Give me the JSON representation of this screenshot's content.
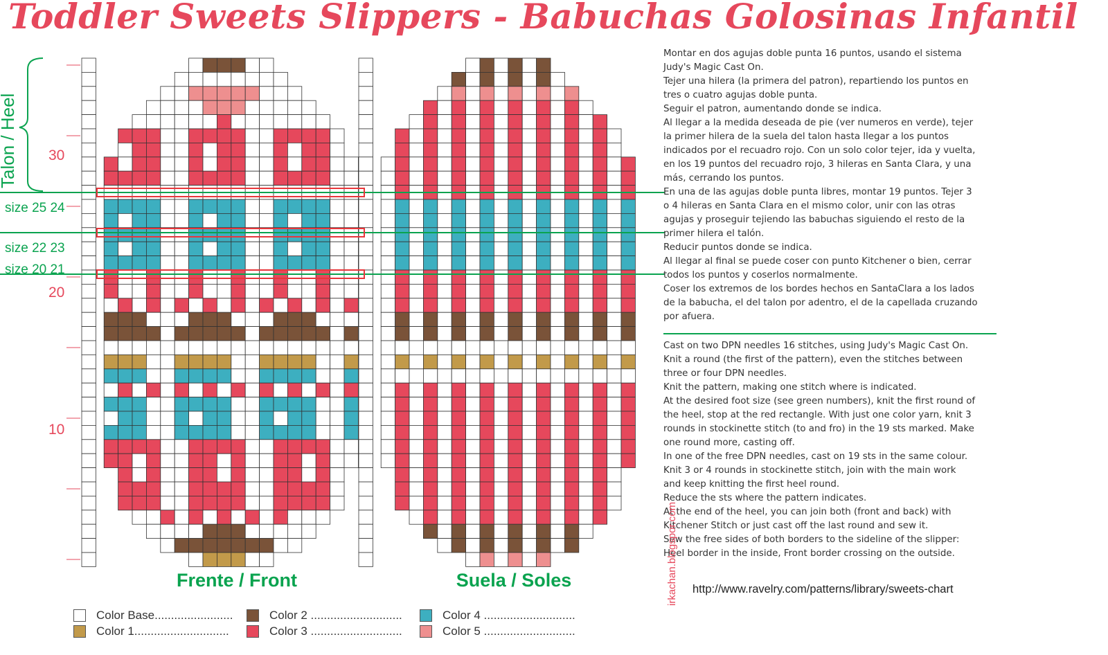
{
  "title": "Toddler Sweets Slippers - Babuchas Golosinas Infantil",
  "colors": {
    "base": "#ffffff",
    "color1": "#c29a4a",
    "color2": "#7a5339",
    "color3": "#e6485c",
    "color4": "#3dafc0",
    "color5": "#ee8f8f",
    "title": "#e6485c",
    "green": "#0aa34f",
    "red_rect": "#e8363a"
  },
  "chart_labels": {
    "front": "Frente / Front",
    "soles": "Suela / Soles",
    "heel": "Talon / Heel",
    "row_30": "30",
    "row_20": "20",
    "row_10": "10",
    "size_25_24": "size 25 24",
    "size_22_23": "size 22 23",
    "size_20_21": "size 20 21"
  },
  "text_es": [
    "Montar en dos agujas doble punta 16 puntos, usando el sistema",
    "Judy's Magic Cast On.",
    "Tejer una hilera (la primera del patron), repartiendo los puntos en",
    "tres o cuatro agujas doble punta.",
    "Seguir el patron, aumentando donde se indica.",
    "Al llegar a la medida deseada de pie (ver numeros en verde), tejer",
    "la primer hilera de la suela del talon hasta llegar a los puntos",
    "indicados por el recuadro rojo. Con un solo color tejer, ida y vuelta,",
    "en los 19 puntos del recuadro rojo, 3 hileras en Santa Clara, y una",
    "más, cerrando los puntos.",
    "En una de las agujas doble punta libres, montar 19 puntos. Tejer 3",
    "o 4 hileras en Santa Clara en el mismo color, unir con las otras",
    "agujas y proseguir tejiendo las babuchas siguiendo el resto de la",
    "primer hilera el talón.",
    "Reducir puntos donde se indica.",
    "Al llegar al final se puede coser con punto Kitchener o bien, cerrar",
    "todos los puntos y coserlos normalmente.",
    "Coser los extremos de los bordes hechos en SantaClara a los lados",
    "de la babucha, el del talon por adentro, el de la capellada cruzando",
    "por afuera."
  ],
  "text_en": [
    "Cast on two DPN needles 16 stitches, using Judy's Magic Cast On.",
    "Knit a round (the first of the pattern), even the stitches between",
    "three or four DPN needles.",
    "Knit the pattern, making one stitch where is indicated.",
    "At the desired foot size (see green numbers), knit the first round of",
    "the heel, stop at the red rectangle. With just one color yarn, knit 3",
    "rounds in stockinette stitch (to and fro) in the 19 sts marked. Make",
    "one round more, casting off.",
    "In one of the free DPN needles, cast on 19 sts in the same colour.",
    "Knit 3 or 4 rounds in stockinette stitch, join with the main work",
    "and keep knitting the first heel round.",
    "Reduce the sts where the pattern indicates.",
    "At the end of the heel, you can join both (front and back) with",
    "Kitchener Stitch or just cast off the last round and sew it.",
    "Sew the free sides of both borders to the sideline of the slipper:",
    "Heel border in the inside, Front border crossing on the outside."
  ],
  "url": "http://www.ravelry.com/patterns/library/sweets-chart",
  "blog": "irkachan.blogspor.com",
  "legend": [
    {
      "label": "Color Base........................",
      "color": "#ffffff"
    },
    {
      "label": "Color 1.............................",
      "color": "#c29a4a"
    },
    {
      "label": "Color 2 ............................",
      "color": "#7a5339"
    },
    {
      "label": "Color 3 ............................",
      "color": "#e6485c"
    },
    {
      "label": "Color 4 ............................",
      "color": "#3dafc0"
    },
    {
      "label": "Color 5 ............................",
      "color": "#ee8f8f"
    }
  ]
}
